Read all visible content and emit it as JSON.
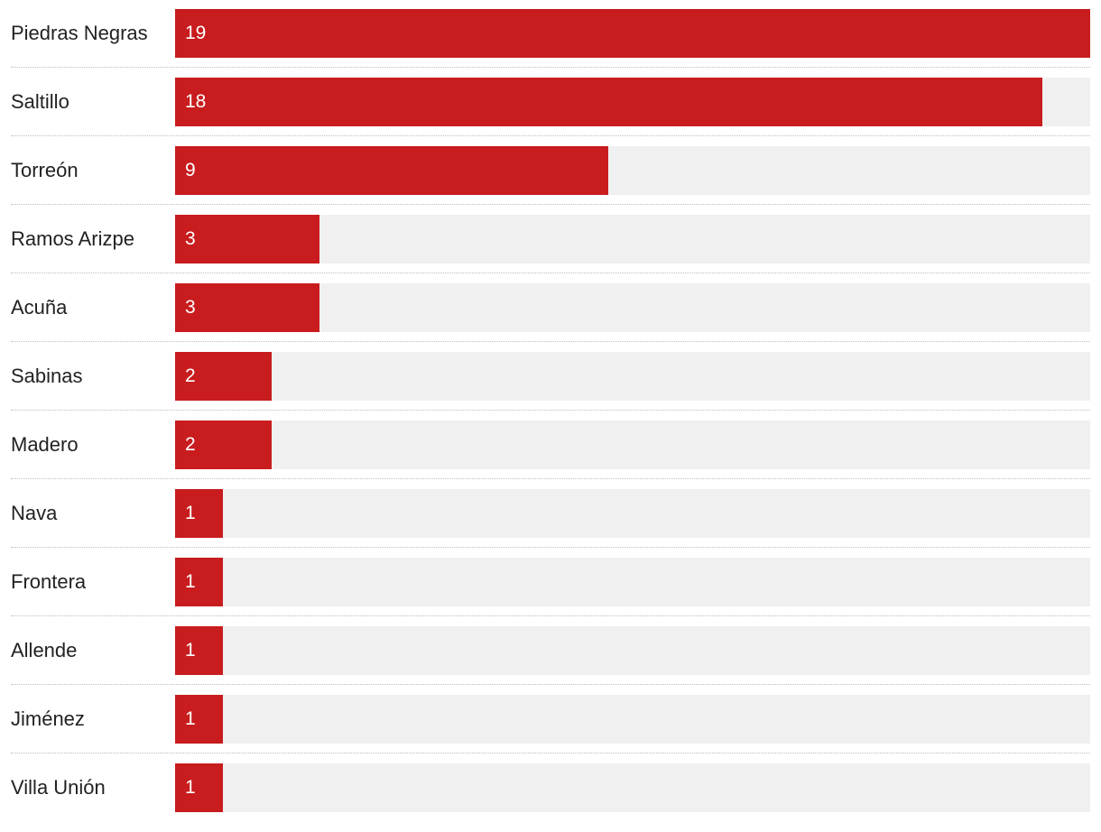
{
  "chart_data": {
    "type": "bar",
    "orientation": "horizontal",
    "title": "",
    "xlabel": "",
    "ylabel": "",
    "categories": [
      "Piedras Negras",
      "Saltillo",
      "Torreón",
      "Ramos Arizpe",
      "Acuña",
      "Sabinas",
      "Madero",
      "Nava",
      "Frontera",
      "Allende",
      "Jiménez",
      "Villa Unión"
    ],
    "values": [
      19,
      18,
      9,
      3,
      3,
      2,
      2,
      1,
      1,
      1,
      1,
      1
    ],
    "xlim": [
      0,
      19
    ],
    "grid": false,
    "legend": "none",
    "colors": {
      "bar": "#c81c1e",
      "track": "#f0f0f0",
      "label": "#222222",
      "value_label": "#ffffff",
      "divider": "#bdbdbd"
    }
  }
}
